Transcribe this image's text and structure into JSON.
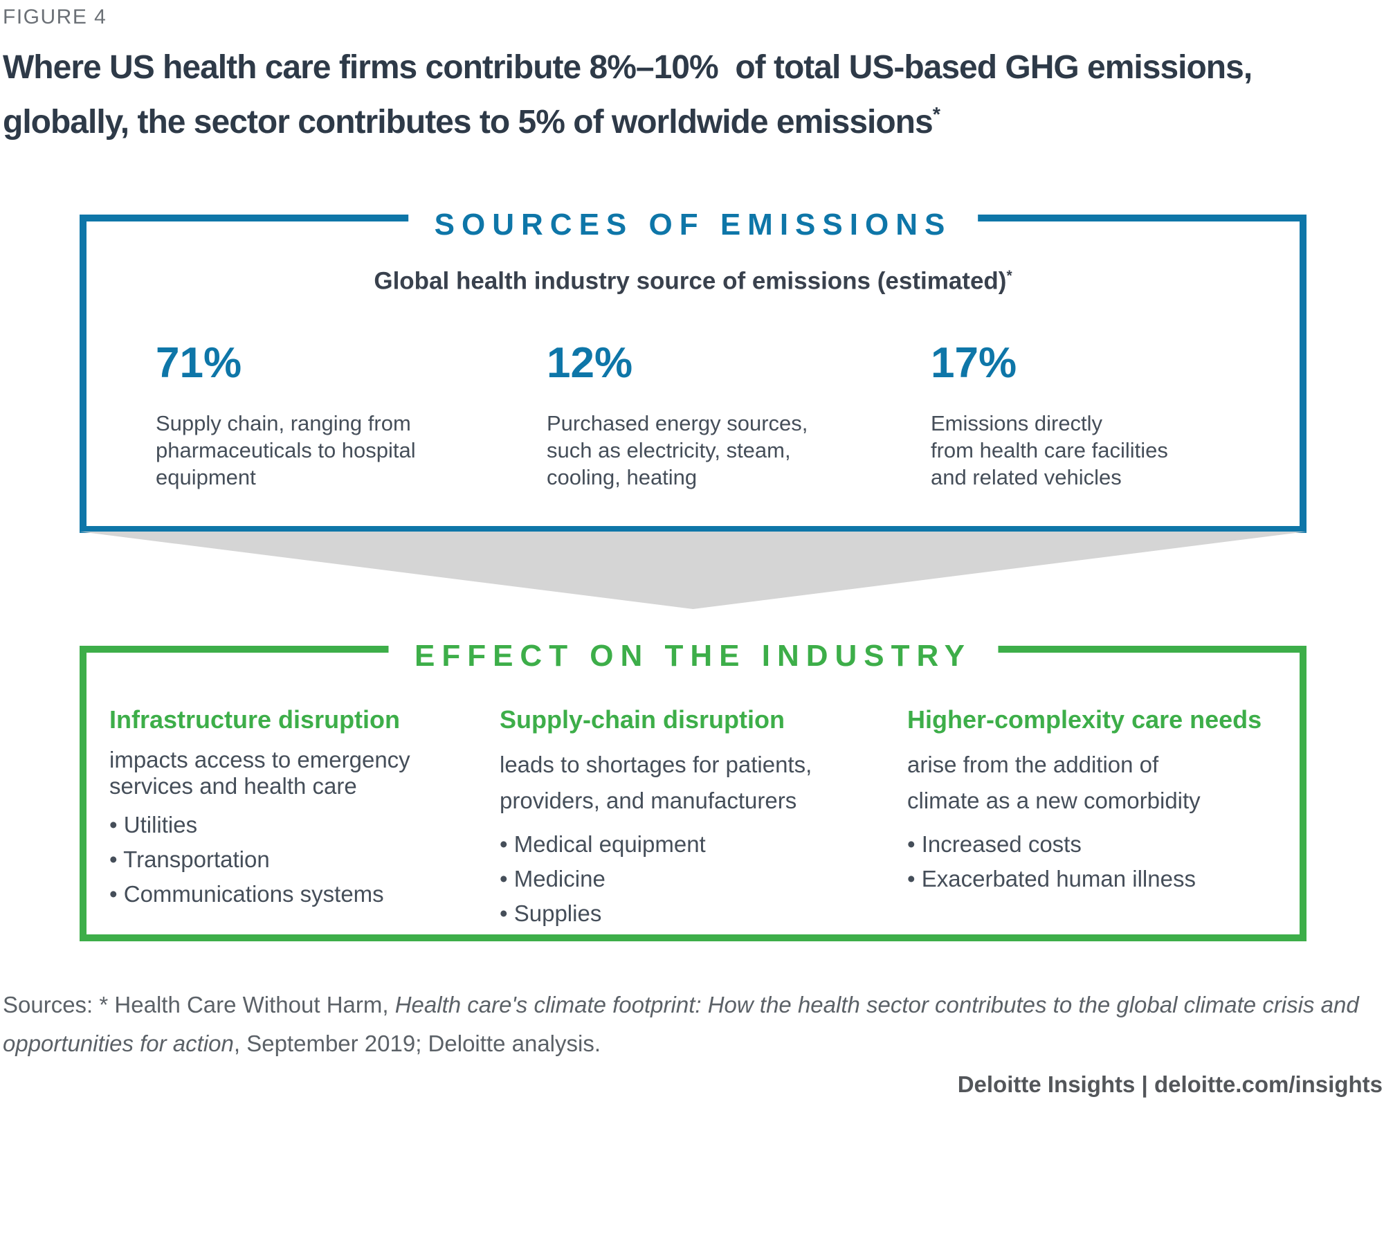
{
  "figure_label": "FIGURE 4",
  "title": {
    "line1": "Where US health care firms contribute 8%–10%  of total US-based GHG emissions,",
    "line2": "globally, the sector contributes to 5% of worldwide emissions",
    "asterisk": "*"
  },
  "sources_box": {
    "header": "SOURCES OF EMISSIONS",
    "subtitle": "Global health industry source of emissions (estimated)",
    "subtitle_asterisk": "*",
    "stats": [
      {
        "percent": "71%",
        "lines": [
          "Supply chain, ranging from",
          "pharmaceuticals to hospital",
          "equipment"
        ]
      },
      {
        "percent": "12%",
        "lines": [
          "Purchased energy sources,",
          "such as electricity, steam,",
          "cooling, heating"
        ]
      },
      {
        "percent": "17%",
        "lines": [
          "Emissions directly",
          "from health care facilities",
          "and related vehicles"
        ]
      }
    ]
  },
  "effects_box": {
    "header": "EFFECT ON THE INDUSTRY",
    "columns": [
      {
        "heading": "Infrastructure disruption",
        "lines": [
          "impacts access to emergency",
          "services and health care"
        ],
        "bullets": [
          "Utilities",
          "Transportation",
          "Communications systems"
        ]
      },
      {
        "heading": "Supply-chain disruption",
        "lines": [
          "leads to shortages for patients,",
          "providers, and manufacturers"
        ],
        "bullets": [
          "Medical equipment",
          "Medicine",
          "Supplies"
        ]
      },
      {
        "heading": "Higher-complexity care needs",
        "lines": [
          "arise from the addition of",
          "climate as a new comorbidity"
        ],
        "bullets": [
          "Increased costs",
          "Exacerbated human illness"
        ]
      }
    ]
  },
  "sources_note": {
    "prefix": "Sources: * Health Care Without Harm, ",
    "italic": "Health care's climate footprint: How the health sector contributes to the global climate crisis and opportunities for action",
    "suffix": ", September 2019; Deloitte analysis."
  },
  "footer": {
    "text": "Deloitte Insights | deloitte.com/insights"
  },
  "colors": {
    "blue": "#0e76a8",
    "green": "#3dae49",
    "arrow-gray": "#d5d5d5",
    "title-dark": "#2e3a48",
    "body-text": "#454e59",
    "label-gray": "#6b7076",
    "source-gray": "#5b6167",
    "footer-gray": "#53565a"
  }
}
